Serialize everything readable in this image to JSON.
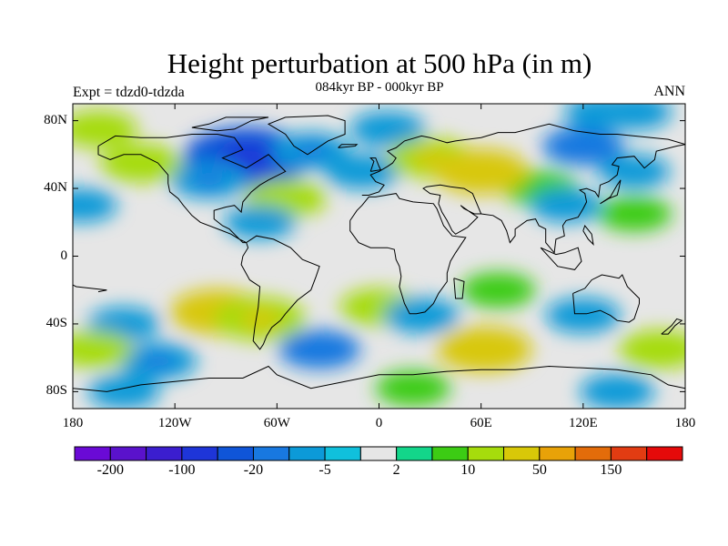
{
  "header": {
    "title": "Height perturbation at 500 hPa (in m)",
    "subtitle": "084kyr BP - 000kyr BP",
    "left_label": "Expt = tdzd0-tdzda",
    "right_label": "ANN"
  },
  "axes": {
    "lat_ticks": [
      "80N",
      "40N",
      "0",
      "40S",
      "80S"
    ],
    "lat_values": [
      80,
      40,
      0,
      -40,
      -80
    ],
    "lon_ticks": [
      "180",
      "120W",
      "60W",
      "0",
      "60E",
      "120E",
      "180"
    ],
    "lon_values": [
      -180,
      -120,
      -60,
      0,
      60,
      120,
      180
    ],
    "lat_range": [
      -90,
      90
    ],
    "lon_range": [
      -180,
      180
    ]
  },
  "colorbar": {
    "colors": [
      "#6a0ad6",
      "#5a12cc",
      "#3b1ecf",
      "#1e35d8",
      "#0f55d8",
      "#1878e0",
      "#0c9ad8",
      "#10c0dc",
      "#e6e6e6",
      "#13d68a",
      "#3ccc14",
      "#a6dc0c",
      "#d8c808",
      "#e8a208",
      "#e36c0a",
      "#e23c12",
      "#e50a0a"
    ],
    "labels": [
      "-200",
      "-100",
      "-20",
      "-5",
      "2",
      "10",
      "50",
      "150"
    ],
    "label_boundaries": [
      1,
      3,
      5,
      7,
      9,
      11,
      13,
      15
    ]
  },
  "chart_data": {
    "type": "heatmap",
    "title": "Height perturbation at 500 hPa (in m)",
    "subtitle": "084kyr BP - 000kyr BP",
    "projection": "cylindrical equidistant",
    "units": "m",
    "levels_labeled": [
      -200,
      -100,
      -20,
      -5,
      2,
      10,
      50,
      150
    ],
    "regions": [
      {
        "lon": -78,
        "lat": 58,
        "value": -40
      },
      {
        "lon": -100,
        "lat": 45,
        "value": -10
      },
      {
        "lon": -40,
        "lat": 62,
        "value": -10
      },
      {
        "lon": -10,
        "lat": 50,
        "value": -8
      },
      {
        "lon": 5,
        "lat": 75,
        "value": -8
      },
      {
        "lon": -55,
        "lat": 34,
        "value": 12
      },
      {
        "lon": -140,
        "lat": 55,
        "value": 12
      },
      {
        "lon": -165,
        "lat": 75,
        "value": 10
      },
      {
        "lon": 30,
        "lat": 58,
        "value": 14
      },
      {
        "lon": 95,
        "lat": 40,
        "value": 8
      },
      {
        "lon": 120,
        "lat": 65,
        "value": -12
      },
      {
        "lon": 150,
        "lat": 85,
        "value": -8
      },
      {
        "lon": 150,
        "lat": 25,
        "value": 8
      },
      {
        "lon": 110,
        "lat": 30,
        "value": -6
      },
      {
        "lon": 150,
        "lat": 50,
        "value": -6
      },
      {
        "lon": -175,
        "lat": 30,
        "value": -6
      },
      {
        "lon": 60,
        "lat": 50,
        "value": 20
      },
      {
        "lon": -70,
        "lat": 20,
        "value": -6
      },
      {
        "lon": -150,
        "lat": -40,
        "value": -6
      },
      {
        "lon": -95,
        "lat": -33,
        "value": 20
      },
      {
        "lon": -70,
        "lat": -37,
        "value": 18
      },
      {
        "lon": -130,
        "lat": -62,
        "value": -10
      },
      {
        "lon": -35,
        "lat": -55,
        "value": -12
      },
      {
        "lon": 0,
        "lat": -30,
        "value": 10
      },
      {
        "lon": 25,
        "lat": -35,
        "value": -8
      },
      {
        "lon": 62,
        "lat": -55,
        "value": 20
      },
      {
        "lon": 70,
        "lat": -20,
        "value": 8
      },
      {
        "lon": 120,
        "lat": -35,
        "value": -8
      },
      {
        "lon": 165,
        "lat": -55,
        "value": 12
      },
      {
        "lon": -168,
        "lat": -55,
        "value": 10
      },
      {
        "lon": 20,
        "lat": -78,
        "value": 8
      },
      {
        "lon": 140,
        "lat": -80,
        "value": -8
      },
      {
        "lon": -150,
        "lat": -80,
        "value": -6
      },
      {
        "lon": 130,
        "lat": 85,
        "value": -6
      }
    ]
  }
}
